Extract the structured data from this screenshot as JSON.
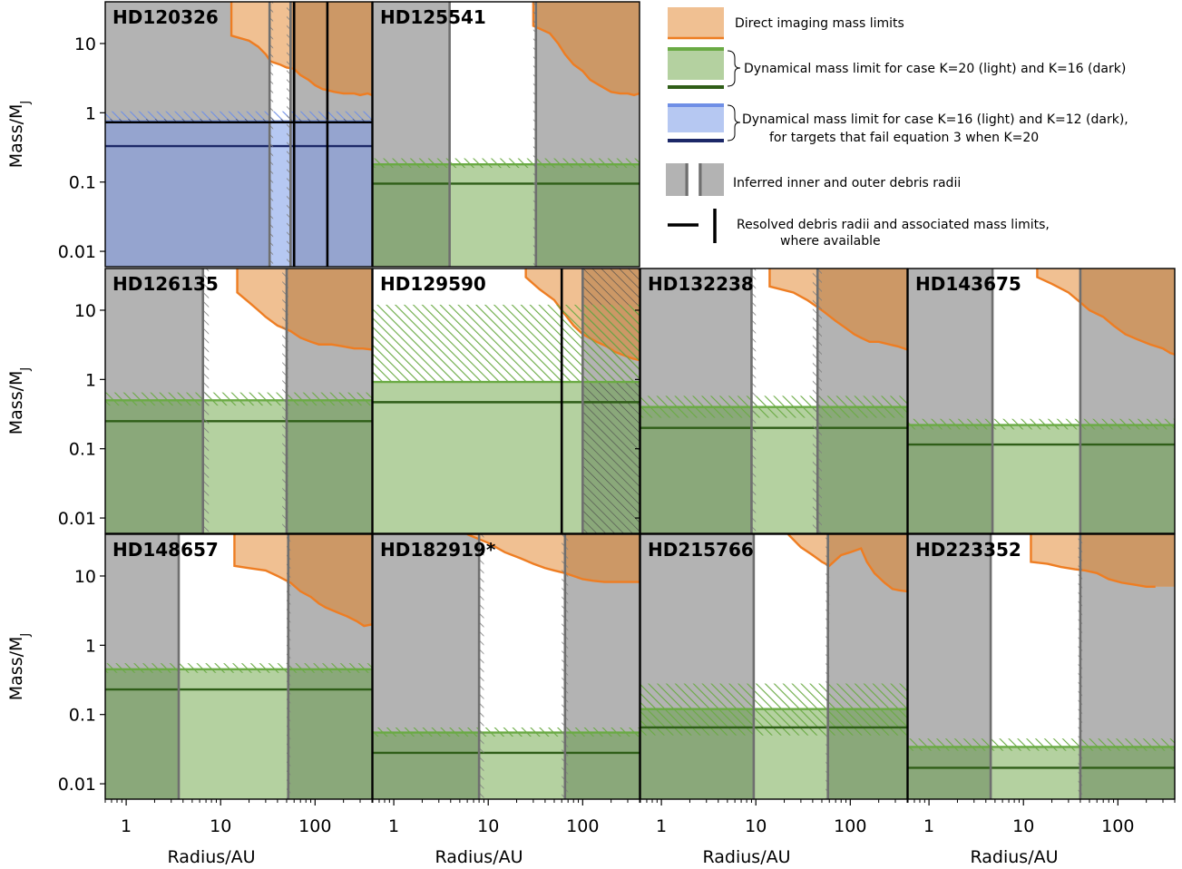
{
  "colors": {
    "gray": "#b3b3b3",
    "gray_line": "#6f6f6f",
    "orange_fill": "#f0c092",
    "orange_dark": "#cc9866",
    "orange_line": "#ee7d22",
    "green_light": "#b4d1a0",
    "green_dark": "#8aa87a",
    "green_hatch": "#6aaa44",
    "green_line": "#2f5e18",
    "blue_light": "#b6c8f2",
    "blue_dark": "#95a4cf",
    "blue_hatch": "#6f8fe6",
    "blue_line": "#1c2868"
  },
  "axes": {
    "xlabel": "Radius/AU",
    "ylabel": "Mass/M",
    "ylabel_sub": "J"
  },
  "legend": {
    "items": [
      {
        "type": "orange-patch",
        "label": "Direct imaging mass limits"
      },
      {
        "type": "green-bracket",
        "label": "Dynamical mass limit for case K=20 (light) and K=16 (dark)"
      },
      {
        "type": "blue-bracket",
        "label": "Dynamical mass limit for case K=16 (light) and K=12 (dark),",
        "label2": "for targets that fail equation 3 when K=20"
      },
      {
        "type": "gray-radii",
        "label": "Inferred inner and outer debris radii"
      },
      {
        "type": "black-lines",
        "label": "Resolved debris radii and associated mass limits,",
        "label2": "where available"
      }
    ]
  },
  "chart_data": [
    {
      "type": "area",
      "title": "HD120326",
      "scheme": "blue",
      "xscale": "log",
      "yscale": "log",
      "xlim": [
        0.6,
        400
      ],
      "ylim": [
        0.006,
        40
      ],
      "xticks": [
        "1",
        "10",
        "100"
      ],
      "yticks": [
        "10",
        "1",
        "0.1",
        "0.01"
      ],
      "r_in": 33,
      "r_out": 55,
      "r_in_hatch": [
        33,
        36
      ],
      "r_out_hatch": [
        50,
        55
      ],
      "mass_light": 0.75,
      "mass_light_hatch": [
        0.75,
        1.05
      ],
      "mass_dark": 0.33,
      "resolved_radii": [
        60,
        135
      ],
      "resolved_mass": 0.73,
      "direct_imaging": {
        "x": [
          13,
          13,
          20,
          25,
          30,
          34,
          42,
          50,
          60,
          70,
          85,
          100,
          120,
          160,
          200,
          260,
          300,
          360,
          400
        ],
        "y": [
          40,
          13,
          11,
          9,
          7,
          5.5,
          5,
          4.5,
          4.3,
          3.5,
          3,
          2.5,
          2.2,
          2,
          1.9,
          1.9,
          1.8,
          1.9,
          1.8
        ]
      }
    },
    {
      "type": "area",
      "title": "HD125541",
      "scheme": "green",
      "xscale": "log",
      "yscale": "log",
      "xlim": [
        0.6,
        400
      ],
      "ylim": [
        0.006,
        40
      ],
      "xticks": [
        "1",
        "10",
        "100"
      ],
      "yticks": [
        "10",
        "1",
        "0.1",
        "0.01"
      ],
      "r_in": 3.9,
      "r_out": 32,
      "r_out_hatch": [
        30,
        32
      ],
      "mass_light": 0.18,
      "mass_light_hatch": [
        0.16,
        0.22
      ],
      "mass_dark": 0.095,
      "direct_imaging": {
        "x": [
          30,
          30,
          45,
          55,
          65,
          80,
          100,
          120,
          150,
          200,
          250,
          300,
          350,
          400
        ],
        "y": [
          40,
          18,
          14,
          10,
          7,
          5,
          4,
          3,
          2.5,
          2,
          1.9,
          1.9,
          1.8,
          1.9
        ]
      }
    },
    {
      "type": "area",
      "title": "HD126135",
      "scheme": "green",
      "xscale": "log",
      "yscale": "log",
      "xlim": [
        0.6,
        400
      ],
      "ylim": [
        0.006,
        40
      ],
      "xticks": [
        "1",
        "10",
        "100"
      ],
      "yticks": [
        "10",
        "1",
        "0.1",
        "0.01"
      ],
      "r_in": 6.5,
      "r_out": 50,
      "r_in_hatch": [
        6.5,
        7.5
      ],
      "r_out_hatch": [
        45,
        52
      ],
      "mass_light": 0.5,
      "mass_light_hatch": [
        0.42,
        0.65
      ],
      "mass_dark": 0.25,
      "direct_imaging": {
        "x": [
          15,
          15,
          20,
          25,
          30,
          40,
          55,
          70,
          90,
          110,
          150,
          200,
          260,
          320,
          400
        ],
        "y": [
          40,
          18,
          13,
          10,
          8,
          6,
          5,
          4,
          3.5,
          3.2,
          3.2,
          3,
          2.8,
          2.8,
          2.7
        ]
      }
    },
    {
      "type": "area",
      "title": "HD129590",
      "scheme": "green",
      "xscale": "log",
      "yscale": "log",
      "xlim": [
        0.6,
        400
      ],
      "ylim": [
        0.006,
        40
      ],
      "xticks": [
        "1",
        "10",
        "100"
      ],
      "yticks": [
        "10",
        "1",
        "0.1",
        "0.01"
      ],
      "r_in": null,
      "r_out": 100,
      "mass_light": 0.92,
      "mass_light_hatch": [
        0.92,
        12
      ],
      "mass_dark": 0.47,
      "resolved_radii": [
        60
      ],
      "outer_hatch_from": 100,
      "direct_imaging": {
        "x": [
          25,
          25,
          35,
          50,
          60,
          80,
          100,
          140,
          180,
          220,
          280,
          340,
          400
        ],
        "y": [
          40,
          30,
          20,
          14,
          10,
          6,
          4.5,
          3.5,
          3,
          2.5,
          2.2,
          2,
          1.9
        ]
      }
    },
    {
      "type": "area",
      "title": "HD132238",
      "scheme": "green",
      "xscale": "log",
      "yscale": "log",
      "xlim": [
        0.6,
        400
      ],
      "ylim": [
        0.006,
        40
      ],
      "xticks": [
        "1",
        "10",
        "100"
      ],
      "yticks": [
        "10",
        "1",
        "0.1",
        "0.01"
      ],
      "r_in": 9,
      "r_out": 45,
      "r_in_hatch": [
        9,
        10
      ],
      "r_out_hatch": [
        40,
        50
      ],
      "mass_light": 0.4,
      "mass_light_hatch": [
        0.28,
        0.58
      ],
      "mass_dark": 0.2,
      "direct_imaging": {
        "x": [
          14,
          14,
          25,
          35,
          50,
          70,
          90,
          110,
          130,
          160,
          200,
          260,
          320,
          400
        ],
        "y": [
          40,
          22,
          18,
          14,
          10,
          7,
          5.5,
          4.5,
          4,
          3.5,
          3.5,
          3.2,
          3,
          2.7
        ]
      }
    },
    {
      "type": "area",
      "title": "HD143675",
      "scheme": "green",
      "xscale": "log",
      "yscale": "log",
      "xlim": [
        0.6,
        400
      ],
      "ylim": [
        0.006,
        40
      ],
      "xticks": [
        "1",
        "10",
        "100"
      ],
      "yticks": [
        "10",
        "1",
        "0.1",
        "0.01"
      ],
      "r_in": 4.7,
      "r_out": 40,
      "mass_light": 0.22,
      "mass_light_hatch": [
        0.19,
        0.27
      ],
      "mass_dark": 0.115,
      "direct_imaging": {
        "x": [
          14,
          14,
          20,
          30,
          40,
          50,
          70,
          90,
          120,
          160,
          220,
          300,
          360,
          400
        ],
        "y": [
          40,
          30,
          24,
          18,
          13,
          10,
          8,
          6,
          4.5,
          3.8,
          3.2,
          2.8,
          2.4,
          2.3
        ]
      }
    },
    {
      "type": "area",
      "title": "HD148657",
      "scheme": "green",
      "xscale": "log",
      "yscale": "log",
      "xlim": [
        0.6,
        400
      ],
      "ylim": [
        0.006,
        40
      ],
      "xticks": [
        "1",
        "10",
        "100"
      ],
      "yticks": [
        "10",
        "1",
        "0.1",
        "0.01"
      ],
      "r_in": 3.6,
      "r_out": 52,
      "r_out_hatch": [
        50,
        55
      ],
      "mass_light": 0.45,
      "mass_light_hatch": [
        0.4,
        0.55
      ],
      "mass_dark": 0.23,
      "direct_imaging": {
        "x": [
          14,
          14,
          20,
          30,
          40,
          55,
          70,
          90,
          110,
          130,
          170,
          220,
          280,
          330,
          400
        ],
        "y": [
          40,
          14,
          13,
          12,
          10,
          8,
          6,
          5,
          4,
          3.5,
          3,
          2.6,
          2.2,
          1.9,
          2
        ]
      }
    },
    {
      "type": "area",
      "title": "HD182919*",
      "scheme": "green",
      "xscale": "log",
      "yscale": "log",
      "xlim": [
        0.6,
        400
      ],
      "ylim": [
        0.006,
        40
      ],
      "xticks": [
        "1",
        "10",
        "100"
      ],
      "yticks": [
        "10",
        "1",
        "0.1",
        "0.01"
      ],
      "r_in": 8,
      "r_out": 65,
      "r_in_hatch": [
        8,
        9
      ],
      "r_out_hatch": [
        60,
        70
      ],
      "mass_light": 0.055,
      "mass_light_hatch": [
        0.048,
        0.065
      ],
      "mass_dark": 0.028,
      "direct_imaging": {
        "x": [
          6,
          10,
          15,
          22,
          30,
          40,
          50,
          65,
          80,
          100,
          130,
          170,
          220,
          300,
          400
        ],
        "y": [
          40,
          30,
          22,
          18,
          15,
          13,
          12,
          11,
          10,
          9,
          8.5,
          8.2,
          8.2,
          8.2,
          8.2
        ]
      }
    },
    {
      "type": "area",
      "title": "HD215766",
      "scheme": "green",
      "xscale": "log",
      "yscale": "log",
      "xlim": [
        0.6,
        400
      ],
      "ylim": [
        0.006,
        40
      ],
      "xticks": [
        "1",
        "10",
        "100"
      ],
      "yticks": [
        "10",
        "1",
        "0.1",
        "0.01"
      ],
      "r_in": 9.5,
      "r_out": 58,
      "r_out_hatch": [
        55,
        60
      ],
      "mass_light": 0.12,
      "mass_light_hatch": [
        0.05,
        0.28
      ],
      "mass_dark": 0.065,
      "direct_imaging": {
        "x": [
          22,
          30,
          40,
          50,
          60,
          80,
          100,
          130,
          150,
          180,
          230,
          280,
          330,
          400
        ],
        "y": [
          40,
          26,
          20,
          16,
          14,
          20,
          22,
          25,
          16,
          11,
          8,
          6.5,
          6.2,
          6
        ]
      }
    },
    {
      "type": "area",
      "title": "HD223352",
      "scheme": "green",
      "xscale": "log",
      "yscale": "log",
      "xlim": [
        0.6,
        400
      ],
      "ylim": [
        0.006,
        40
      ],
      "xticks": [
        "1",
        "10",
        "100"
      ],
      "yticks": [
        "10",
        "1",
        "0.1",
        "0.01"
      ],
      "r_in": 4.5,
      "r_out": 40,
      "r_out_hatch": [
        38,
        42
      ],
      "mass_light": 0.034,
      "mass_light_hatch": [
        0.03,
        0.045
      ],
      "mass_dark": 0.017,
      "direct_imaging": {
        "x": [
          12,
          12,
          18,
          25,
          35,
          45,
          60,
          80,
          110,
          150,
          200,
          250
        ],
        "y": [
          40,
          16,
          15,
          13.5,
          12.5,
          12,
          11,
          9,
          8,
          7.5,
          7,
          7
        ]
      }
    }
  ]
}
